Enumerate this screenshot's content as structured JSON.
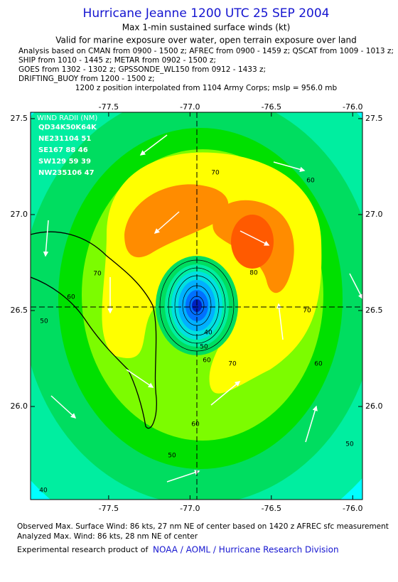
{
  "header": {
    "title": "Hurricane Jeanne 1200 UTC 25 SEP 2004",
    "subtitle": "Max 1-min sustained surface winds (kt)",
    "valid": "Valid for marine exposure over water, open terrain exposure over land",
    "analysis_lines": [
      "Analysis based on  CMAN from 0900 - 1500 z;  AFREC from 0900 - 1459 z;  QSCAT from 1009 - 1013 z;",
      "SHIP from 1010 - 1445 z;  METAR from 0902 - 1500 z;",
      "GOES from 1302 - 1302 z;  GPSSONDE_WL150 from 0912 - 1433 z;",
      "DRIFTING_BUOY from 1200 - 1500 z;"
    ],
    "position_note": "1200 z position interpolated from 1104 Army Corps; mslp = 956.0 mb"
  },
  "map": {
    "xlim": [
      -77.98,
      -75.94
    ],
    "ylim": [
      25.515,
      27.533
    ],
    "xticks": [
      -77.5,
      {
        "value": -77.0,
        "label": "-77.0"
      },
      -76.5,
      {
        "value": -76.0,
        "label": "-76.0"
      }
    ],
    "yticks": [
      {
        "value": 26.0,
        "label": "26.0"
      },
      26.5,
      {
        "value": 27.0,
        "label": "27.0"
      },
      27.5
    ],
    "wind_radii": {
      "title": "WIND RADII (NM)",
      "lines": [
        "QD34K50K64K",
        "NE231104 51",
        "SE167 88 46",
        "SW129 59 39",
        "NW235106 47"
      ]
    },
    "contour_labels": [
      "70",
      "60",
      "60",
      "70",
      "50",
      "80",
      "70",
      "60",
      "70",
      "60",
      "50",
      "40",
      "60",
      "50",
      "50",
      "40"
    ]
  },
  "footer": {
    "observed": "Observed Max. Surface Wind: 86 kts, 27 nm NE of center based on 1420 z AFREC sfc measurement",
    "analyzed": "Analyzed Max. Wind: 86 kts, 28 nm NE of center",
    "credit": "Experimental research product of",
    "org": "NOAA / AOML / Hurricane Research Division"
  }
}
